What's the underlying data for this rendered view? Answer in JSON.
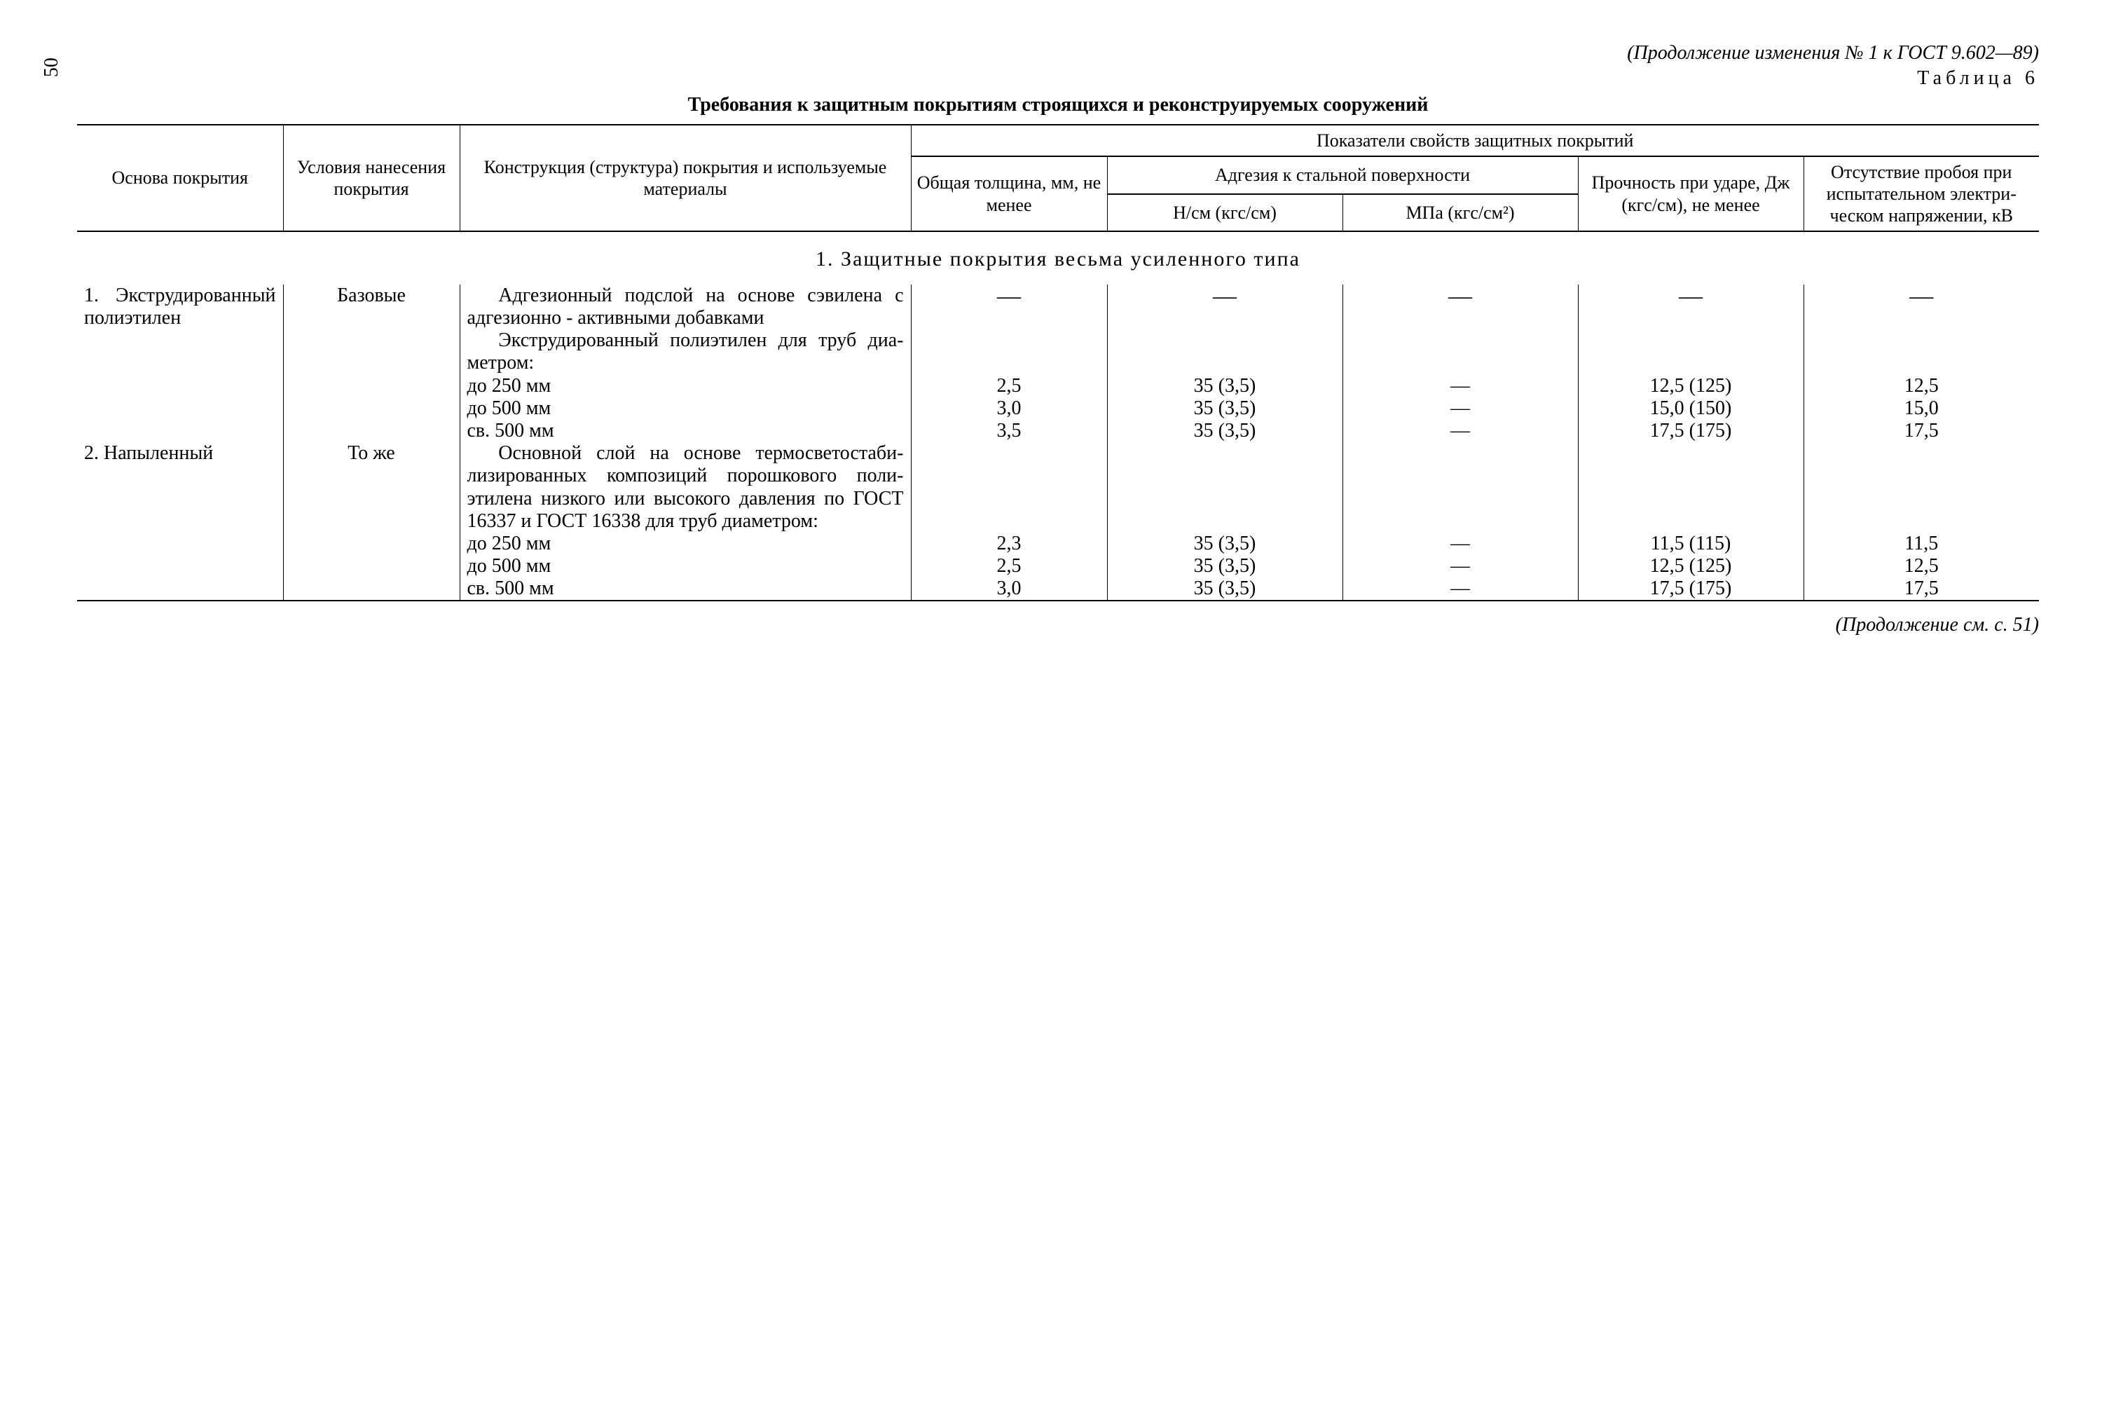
{
  "page_number_side": "50",
  "continuation_header": "(Продолжение изменения № 1 к ГОСТ 9.602—89)",
  "table_label": "Таблица 6",
  "table_title": "Требования к защитным покрытиям строящихся и реконструируемых сооружений",
  "columns": {
    "basis": "Основа покрытия",
    "conditions": "Условия нанесения покрытия",
    "structure": "Конструкция (структура) покрытия и используемые материалы",
    "properties_group": "Показатели свойств защитных покрытий",
    "thickness": "Общая тол­щина, мм, не менее",
    "adhesion_group": "Адгезия к стальной поверхности",
    "adhesion_ncm": "Н/см (кгс/см)",
    "adhesion_mpa": "МПа (кгс/см²)",
    "impact": "Прочность при ударе, Дж (кгс/см), не менее",
    "breakdown": "Отсутствие пробоя при испытатель­ном электри­ческом напря­жении, кВ"
  },
  "section1_title": "1. Защитные покрытия весьма усиленного типа",
  "row1": {
    "basis": "1. Экс­трудирован­ный поли­этилен",
    "conditions": "Базовые",
    "struct_p1": "Адгезионный подслой на основе сэвилена с адгезионно - активными добавками",
    "struct_p2": "Экструдированный по­лиэтилен для труб диа­метром:",
    "d1": "до 250 мм",
    "d2": "до 500 мм",
    "d3": "св. 500 мм",
    "vals": {
      "d1": {
        "th": "2,5",
        "aN": "35 (3,5)",
        "aM": "—",
        "imp": "12,5 (125)",
        "bk": "12,5"
      },
      "d2": {
        "th": "3,0",
        "aN": "35 (3,5)",
        "aM": "—",
        "imp": "15,0 (150)",
        "bk": "15,0"
      },
      "d3": {
        "th": "3,5",
        "aN": "35 (3,5)",
        "aM": "—",
        "imp": "17,5 (175)",
        "bk": "17,5"
      }
    }
  },
  "row2": {
    "basis": "2. Напы­ленный",
    "conditions": "То же",
    "struct_p1": "Основной слой на ос­нове термосветостаби­лизированных компози­ций порошкового поли­этилена низкого или вы­сокого давления по ГОСТ 16337 и ГОСТ 16338 для труб диамет­ром:",
    "d1": "до 250 мм",
    "d2": "до 500 мм",
    "d3": "св. 500 мм",
    "vals": {
      "d1": {
        "th": "2,3",
        "aN": "35 (3,5)",
        "aM": "—",
        "imp": "11,5 (115)",
        "bk": "11,5"
      },
      "d2": {
        "th": "2,5",
        "aN": "35 (3,5)",
        "aM": "—",
        "imp": "12,5 (125)",
        "bk": "12,5"
      },
      "d3": {
        "th": "3,0",
        "aN": "35 (3,5)",
        "aM": "—",
        "imp": "17,5 (175)",
        "bk": "17,5"
      }
    }
  },
  "footer_note": "(Продолжение см. с. 51)",
  "dash": "—"
}
